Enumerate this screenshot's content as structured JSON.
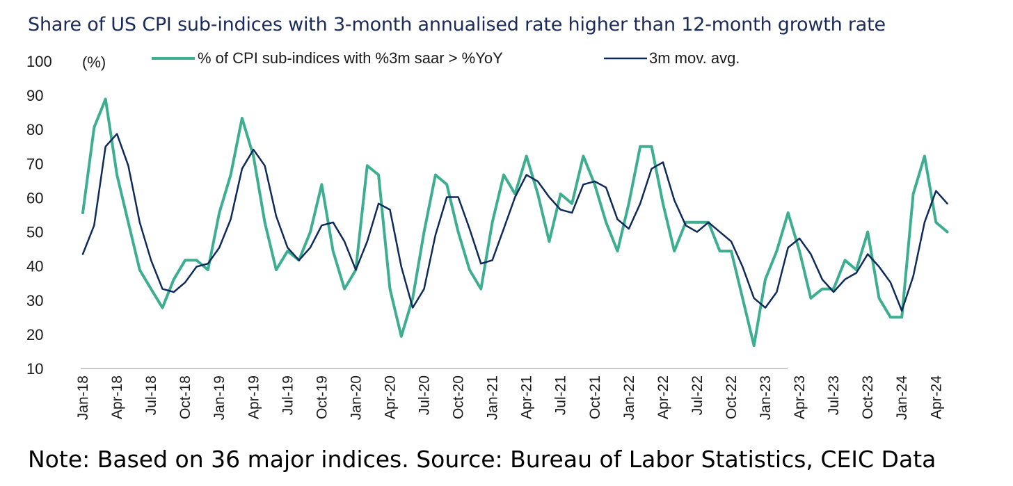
{
  "title": "Share of US CPI sub-indices with 3-month annualised rate higher than 12-month growth rate",
  "note": "Note: Based on 36 major indices. Source: Bureau of Labor Statistics, CEIC Data",
  "colors": {
    "series1": "#3dae8f",
    "series2": "#0e2a5a",
    "axis": "#c8c8c8"
  },
  "chart_data": {
    "type": "line",
    "ylabel": "(%)",
    "ylim": [
      10,
      100
    ],
    "yticks": [
      10,
      20,
      30,
      40,
      50,
      60,
      70,
      80,
      90,
      100
    ],
    "grid": false,
    "legend": "top",
    "x": [
      "Jan-18",
      "Feb-18",
      "Mar-18",
      "Apr-18",
      "May-18",
      "Jun-18",
      "Jul-18",
      "Aug-18",
      "Sep-18",
      "Oct-18",
      "Nov-18",
      "Dec-18",
      "Jan-19",
      "Feb-19",
      "Mar-19",
      "Apr-19",
      "May-19",
      "Jun-19",
      "Jul-19",
      "Aug-19",
      "Sep-19",
      "Oct-19",
      "Nov-19",
      "Dec-19",
      "Jan-20",
      "Feb-20",
      "Mar-20",
      "Apr-20",
      "May-20",
      "Jun-20",
      "Jul-20",
      "Aug-20",
      "Sep-20",
      "Oct-20",
      "Nov-20",
      "Dec-20",
      "Jan-21",
      "Feb-21",
      "Mar-21",
      "Apr-21",
      "May-21",
      "Jun-21",
      "Jul-21",
      "Aug-21",
      "Sep-21",
      "Oct-21",
      "Nov-21",
      "Dec-21",
      "Jan-22",
      "Feb-22",
      "Mar-22",
      "Apr-22",
      "May-22",
      "Jun-22",
      "Jul-22",
      "Aug-22",
      "Sep-22",
      "Oct-22",
      "Nov-22",
      "Dec-22",
      "Jan-23",
      "Feb-23",
      "Mar-23",
      "Apr-23",
      "May-23",
      "Jun-23",
      "Jul-23",
      "Aug-23",
      "Sep-23",
      "Oct-23",
      "Nov-23",
      "Dec-23",
      "Jan-24",
      "Feb-24",
      "Mar-24",
      "Apr-24",
      "May-24"
    ],
    "xtick_labels": [
      "Jan-18",
      "Apr-18",
      "Jul-18",
      "Oct-18",
      "Jan-19",
      "Apr-19",
      "Jul-19",
      "Oct-19",
      "Jan-20",
      "Apr-20",
      "Jul-20",
      "Oct-20",
      "Jan-21",
      "Apr-21",
      "Jul-21",
      "Oct-21",
      "Jan-22",
      "Apr-22",
      "Jul-22",
      "Oct-22",
      "Jan-23",
      "Apr-23",
      "Jul-23",
      "Oct-23",
      "Jan-24",
      "Apr-24"
    ],
    "series": [
      {
        "name": "% of CPI sub-indices with %3m saar > %YoY",
        "values": [
          55.6,
          80.6,
          88.9,
          66.7,
          52.8,
          38.9,
          33.3,
          27.8,
          36.1,
          41.7,
          41.7,
          38.9,
          55.6,
          66.7,
          83.3,
          72.2,
          52.8,
          38.9,
          44.4,
          41.7,
          50.0,
          63.9,
          44.4,
          33.3,
          38.9,
          69.4,
          66.7,
          33.3,
          19.4,
          30.6,
          50.0,
          66.7,
          63.9,
          50.0,
          38.9,
          33.3,
          52.8,
          66.7,
          61.1,
          72.2,
          61.1,
          47.2,
          61.1,
          58.3,
          72.2,
          63.9,
          52.8,
          44.4,
          58.3,
          75.0,
          75.0,
          58.3,
          44.4,
          52.8,
          52.8,
          52.8,
          44.4,
          44.4,
          30.6,
          16.7,
          36.1,
          44.4,
          55.6,
          44.4,
          30.6,
          33.3,
          33.3,
          41.7,
          38.9,
          50.0,
          30.6,
          25.0,
          25.0,
          61.1,
          72.2,
          52.8,
          50.0
        ]
      },
      {
        "name": "3m mov. avg.",
        "values": [
          43.5,
          51.9,
          75.0,
          78.7,
          69.4,
          52.8,
          41.7,
          33.3,
          32.4,
          35.2,
          39.8,
          40.7,
          45.4,
          53.7,
          68.5,
          74.1,
          69.4,
          54.6,
          45.4,
          41.7,
          45.4,
          51.9,
          52.8,
          47.2,
          38.9,
          47.2,
          58.3,
          56.5,
          39.8,
          27.8,
          33.3,
          49.1,
          60.2,
          60.2,
          50.9,
          40.7,
          41.7,
          50.9,
          60.2,
          66.7,
          64.8,
          60.2,
          56.5,
          55.6,
          63.9,
          64.8,
          63.0,
          53.7,
          50.9,
          58.3,
          68.5,
          70.4,
          59.3,
          51.9,
          50.0,
          52.8,
          50.0,
          47.2,
          39.8,
          30.6,
          27.8,
          32.4,
          45.4,
          48.1,
          43.5,
          36.1,
          32.4,
          36.1,
          38.0,
          43.5,
          39.8,
          35.2,
          26.9,
          37.0,
          52.8,
          62.0,
          58.3
        ]
      }
    ]
  }
}
